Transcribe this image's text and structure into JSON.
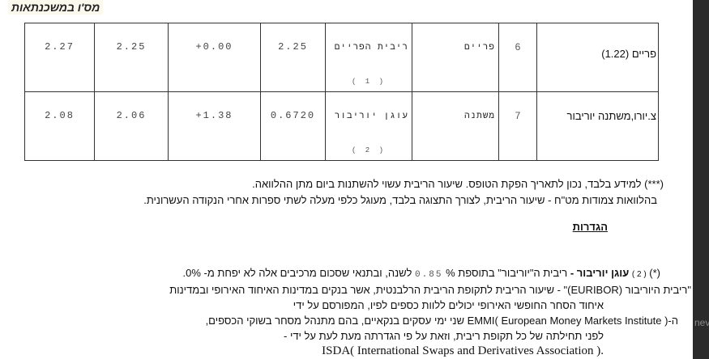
{
  "title": "מס'ו במשכנתאות",
  "table": {
    "rows": [
      {
        "c1": "2.27",
        "c2": "2.25",
        "c3": "+0.00",
        "c4": "2.25",
        "anchor": "ריבית הפריים",
        "anchor_note": "( 1 )",
        "type": "פריים",
        "num": "6",
        "name": "פריים (1.22)"
      },
      {
        "c1": "2.08",
        "c2": "2.06",
        "c3": "+1.38",
        "c4": "0.6720",
        "anchor": "עוגן יוריבור",
        "anchor_note": "( 2 )",
        "type": "משתנה",
        "num": "7",
        "name": "צ.יורו,משתנה יוריבור"
      }
    ]
  },
  "notes": {
    "line1": "(***) למידע בלבד, נכון לתאריך הפקת הטופס. שיעור הריבית עשוי להשתנות ביום מתן ההלוואה.",
    "line2": "בהלוואות צמודות מט\"ח - שיעור הריבית, לצורך התצוגה בלבד, מעוגל כלפי מעלה לשתי ספרות אחרי הנקודה העשרונית."
  },
  "definitions": {
    "heading": "הגדרות",
    "star": "(*)",
    "ref": "( 2 )",
    "term": "עוגן יוריבור -",
    "text_a": "ריבית ה\"יוריבור\" בתוספת %",
    "margin": "0.85",
    "text_b": "לשנה, ובתנאי שסכום מרכיבים אלה לא יפחת מ- 0%.",
    "p1": "\"ריבית היוריבור (EURIBOR)\" - שיעור הריבית לתקופת הריבית הרלבנטית, אשר בנקים במדינות האיחוד האירופי ובמדינות",
    "p2": "איחוד הסחר החופשי האירופי יכולים ללוות כספים לפיו, המפורסם על ידי",
    "p3": "ה-( European Money Markets Institute )EMMI שני ימי עסקים בנקאיים, בהם מתנהל מסחר בשוקי הכספים,",
    "p4": "לפני תחילתה של כל תקופת ריבית, וזאת על פי הגדרתה מעת לעת על ידי -",
    "p5": "ISDA( International Swaps and Derivatives Association )."
  },
  "side_panel": {
    "label": "nev"
  }
}
